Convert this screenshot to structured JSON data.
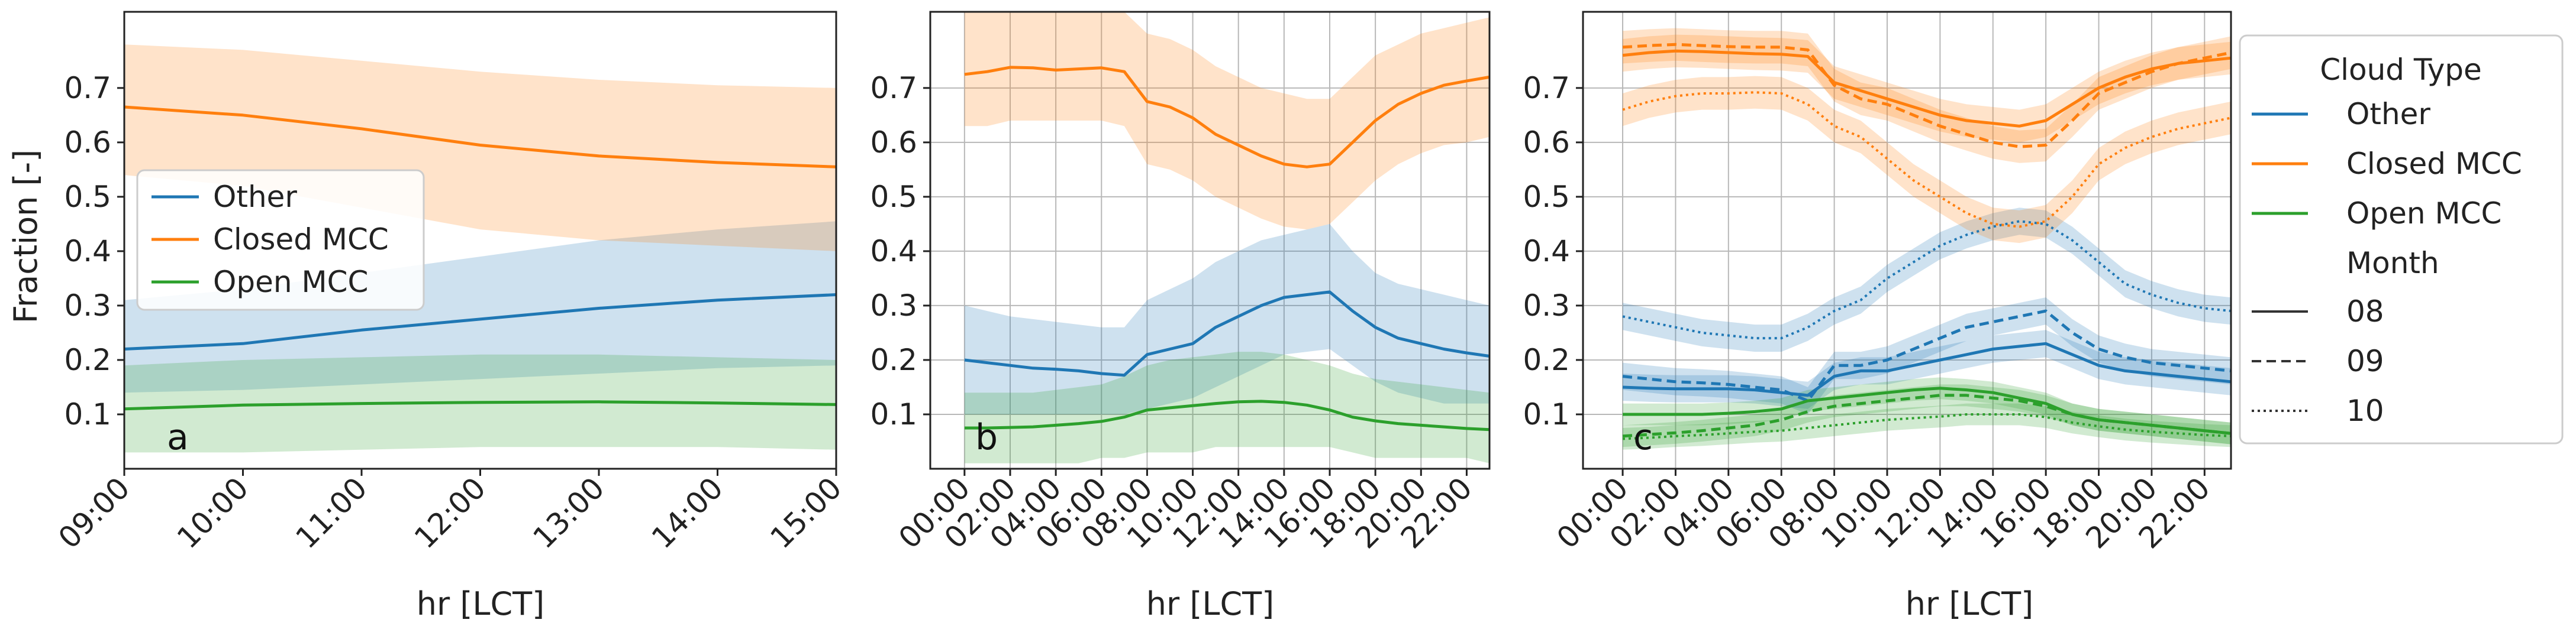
{
  "chart_data": [
    {
      "panel": "a",
      "type": "line",
      "xlabel": "hr [LCT]",
      "ylabel": "Fraction [-]",
      "xlim": [
        9,
        15
      ],
      "ylim": [
        0,
        0.84
      ],
      "grid": false,
      "xticks": [
        9,
        10,
        11,
        12,
        13,
        14,
        15
      ],
      "xticklabels": [
        "09:00",
        "10:00",
        "11:00",
        "12:00",
        "13:00",
        "14:00",
        "15:00"
      ],
      "yticks": [
        0.1,
        0.2,
        0.3,
        0.4,
        0.5,
        0.6,
        0.7
      ],
      "yticklabels": [
        "0.1",
        "0.2",
        "0.3",
        "0.4",
        "0.5",
        "0.6",
        "0.7"
      ],
      "legend_position": "center-left",
      "legend": [
        "Other",
        "Closed MCC",
        "Open MCC"
      ],
      "x": [
        9,
        10,
        11,
        12,
        13,
        14,
        15
      ],
      "series": [
        {
          "name": "Other",
          "color": "#1f77b4",
          "style": "solid",
          "values": [
            0.22,
            0.23,
            0.255,
            0.275,
            0.295,
            0.31,
            0.32
          ],
          "lower": [
            0.14,
            0.145,
            0.155,
            0.165,
            0.175,
            0.185,
            0.19
          ],
          "upper": [
            0.31,
            0.33,
            0.36,
            0.39,
            0.42,
            0.44,
            0.455
          ]
        },
        {
          "name": "Closed MCC",
          "color": "#ff7f0e",
          "style": "solid",
          "values": [
            0.665,
            0.65,
            0.625,
            0.595,
            0.575,
            0.563,
            0.555
          ],
          "lower": [
            0.54,
            0.52,
            0.48,
            0.44,
            0.42,
            0.41,
            0.4
          ],
          "upper": [
            0.78,
            0.77,
            0.75,
            0.73,
            0.715,
            0.705,
            0.7
          ]
        },
        {
          "name": "Open MCC",
          "color": "#2ca02c",
          "style": "solid",
          "values": [
            0.11,
            0.117,
            0.12,
            0.122,
            0.123,
            0.121,
            0.118
          ],
          "lower": [
            0.03,
            0.03,
            0.035,
            0.04,
            0.04,
            0.04,
            0.035
          ],
          "upper": [
            0.19,
            0.2,
            0.205,
            0.21,
            0.21,
            0.205,
            0.2
          ]
        }
      ]
    },
    {
      "panel": "b",
      "type": "line",
      "xlabel": "hr [LCT]",
      "ylabel": "",
      "xlim": [
        -1.5,
        23
      ],
      "ylim": [
        0,
        0.84
      ],
      "grid": true,
      "xticks": [
        0,
        2,
        4,
        6,
        8,
        10,
        12,
        14,
        16,
        18,
        20,
        22
      ],
      "xticklabels": [
        "00:00",
        "02:00",
        "04:00",
        "06:00",
        "08:00",
        "10:00",
        "12:00",
        "14:00",
        "16:00",
        "18:00",
        "20:00",
        "22:00"
      ],
      "yticks": [
        0.1,
        0.2,
        0.3,
        0.4,
        0.5,
        0.6,
        0.7
      ],
      "yticklabels": [
        "0.1",
        "0.2",
        "0.3",
        "0.4",
        "0.5",
        "0.6",
        "0.7"
      ],
      "x": [
        0,
        1,
        2,
        3,
        4,
        5,
        6,
        7,
        8,
        9,
        10,
        11,
        12,
        13,
        14,
        15,
        16,
        17,
        18,
        19,
        20,
        21,
        22,
        23
      ],
      "series": [
        {
          "name": "Other",
          "color": "#1f77b4",
          "style": "solid",
          "values": [
            0.2,
            0.195,
            0.19,
            0.185,
            0.183,
            0.18,
            0.175,
            0.172,
            0.21,
            0.22,
            0.23,
            0.26,
            0.28,
            0.3,
            0.315,
            0.32,
            0.325,
            0.29,
            0.26,
            0.24,
            0.23,
            0.22,
            0.213,
            0.207
          ],
          "lower": [
            0.1,
            0.1,
            0.1,
            0.1,
            0.1,
            0.1,
            0.1,
            0.1,
            0.11,
            0.12,
            0.13,
            0.15,
            0.17,
            0.19,
            0.21,
            0.215,
            0.22,
            0.19,
            0.16,
            0.14,
            0.13,
            0.12,
            0.12,
            0.12
          ],
          "upper": [
            0.3,
            0.29,
            0.28,
            0.275,
            0.27,
            0.265,
            0.26,
            0.26,
            0.31,
            0.33,
            0.35,
            0.38,
            0.4,
            0.42,
            0.43,
            0.44,
            0.45,
            0.4,
            0.36,
            0.34,
            0.33,
            0.32,
            0.31,
            0.3
          ]
        },
        {
          "name": "Closed MCC",
          "color": "#ff7f0e",
          "style": "solid",
          "values": [
            0.725,
            0.73,
            0.738,
            0.737,
            0.733,
            0.735,
            0.737,
            0.73,
            0.675,
            0.665,
            0.645,
            0.615,
            0.595,
            0.575,
            0.56,
            0.555,
            0.56,
            0.6,
            0.64,
            0.67,
            0.69,
            0.705,
            0.713,
            0.72
          ],
          "lower": [
            0.63,
            0.63,
            0.64,
            0.64,
            0.64,
            0.64,
            0.64,
            0.63,
            0.56,
            0.55,
            0.53,
            0.5,
            0.48,
            0.46,
            0.445,
            0.44,
            0.45,
            0.49,
            0.53,
            0.56,
            0.58,
            0.595,
            0.6,
            0.61
          ],
          "upper": [
            0.84,
            0.84,
            0.84,
            0.84,
            0.84,
            0.84,
            0.84,
            0.84,
            0.8,
            0.79,
            0.77,
            0.74,
            0.72,
            0.7,
            0.69,
            0.68,
            0.68,
            0.72,
            0.76,
            0.78,
            0.8,
            0.81,
            0.82,
            0.83
          ]
        },
        {
          "name": "Open MCC",
          "color": "#2ca02c",
          "style": "solid",
          "values": [
            0.075,
            0.075,
            0.076,
            0.077,
            0.08,
            0.083,
            0.087,
            0.095,
            0.108,
            0.112,
            0.116,
            0.12,
            0.123,
            0.124,
            0.122,
            0.117,
            0.108,
            0.095,
            0.088,
            0.083,
            0.08,
            0.077,
            0.074,
            0.072
          ],
          "lower": [
            0.01,
            0.01,
            0.01,
            0.01,
            0.01,
            0.01,
            0.02,
            0.02,
            0.03,
            0.03,
            0.03,
            0.04,
            0.04,
            0.04,
            0.04,
            0.04,
            0.04,
            0.03,
            0.02,
            0.02,
            0.02,
            0.02,
            0.02,
            0.01
          ],
          "upper": [
            0.14,
            0.14,
            0.14,
            0.14,
            0.145,
            0.15,
            0.155,
            0.17,
            0.19,
            0.2,
            0.205,
            0.21,
            0.215,
            0.215,
            0.21,
            0.2,
            0.19,
            0.175,
            0.165,
            0.16,
            0.155,
            0.15,
            0.145,
            0.14
          ]
        }
      ]
    },
    {
      "panel": "c",
      "type": "line",
      "xlabel": "hr [LCT]",
      "ylabel": "",
      "xlim": [
        -1.5,
        23
      ],
      "ylim": [
        0,
        0.84
      ],
      "grid": true,
      "xticks": [
        0,
        2,
        4,
        6,
        8,
        10,
        12,
        14,
        16,
        18,
        20,
        22
      ],
      "xticklabels": [
        "00:00",
        "02:00",
        "04:00",
        "06:00",
        "08:00",
        "10:00",
        "12:00",
        "14:00",
        "16:00",
        "18:00",
        "20:00",
        "22:00"
      ],
      "yticks": [
        0.1,
        0.2,
        0.3,
        0.4,
        0.5,
        0.6,
        0.7
      ],
      "yticklabels": [
        "0.1",
        "0.2",
        "0.3",
        "0.4",
        "0.5",
        "0.6",
        "0.7"
      ],
      "x": [
        0,
        1,
        2,
        3,
        4,
        5,
        6,
        7,
        8,
        9,
        10,
        11,
        12,
        13,
        14,
        15,
        16,
        17,
        18,
        19,
        20,
        21,
        22,
        23
      ],
      "band_halfwidth": {
        "Other": 0.025,
        "Closed MCC": 0.03,
        "Open MCC": 0.02
      },
      "series": [
        {
          "name": "Other",
          "month": "08",
          "color": "#1f77b4",
          "style": "solid",
          "values": [
            0.15,
            0.148,
            0.147,
            0.147,
            0.147,
            0.145,
            0.14,
            0.135,
            0.17,
            0.18,
            0.18,
            0.19,
            0.2,
            0.21,
            0.22,
            0.225,
            0.23,
            0.21,
            0.19,
            0.18,
            0.175,
            0.17,
            0.165,
            0.16
          ]
        },
        {
          "name": "Other",
          "month": "09",
          "color": "#1f77b4",
          "style": "dashed",
          "values": [
            0.17,
            0.165,
            0.16,
            0.158,
            0.155,
            0.15,
            0.145,
            0.125,
            0.19,
            0.19,
            0.2,
            0.22,
            0.24,
            0.26,
            0.27,
            0.28,
            0.29,
            0.25,
            0.22,
            0.205,
            0.195,
            0.19,
            0.185,
            0.18
          ]
        },
        {
          "name": "Other",
          "month": "10",
          "color": "#1f77b4",
          "style": "dotted",
          "values": [
            0.28,
            0.27,
            0.26,
            0.25,
            0.245,
            0.24,
            0.24,
            0.26,
            0.29,
            0.31,
            0.35,
            0.38,
            0.41,
            0.43,
            0.445,
            0.455,
            0.45,
            0.42,
            0.38,
            0.34,
            0.32,
            0.305,
            0.295,
            0.29
          ]
        },
        {
          "name": "Closed MCC",
          "month": "08",
          "color": "#ff7f0e",
          "style": "solid",
          "values": [
            0.76,
            0.765,
            0.768,
            0.767,
            0.765,
            0.763,
            0.762,
            0.758,
            0.71,
            0.695,
            0.68,
            0.665,
            0.65,
            0.64,
            0.635,
            0.63,
            0.64,
            0.67,
            0.7,
            0.72,
            0.735,
            0.745,
            0.75,
            0.755
          ]
        },
        {
          "name": "Closed MCC",
          "month": "09",
          "color": "#ff7f0e",
          "style": "dashed",
          "values": [
            0.775,
            0.778,
            0.78,
            0.778,
            0.776,
            0.775,
            0.775,
            0.77,
            0.705,
            0.68,
            0.67,
            0.65,
            0.63,
            0.615,
            0.6,
            0.592,
            0.595,
            0.64,
            0.69,
            0.71,
            0.73,
            0.745,
            0.755,
            0.765
          ]
        },
        {
          "name": "Closed MCC",
          "month": "10",
          "color": "#ff7f0e",
          "style": "dotted",
          "values": [
            0.66,
            0.675,
            0.685,
            0.69,
            0.69,
            0.692,
            0.69,
            0.67,
            0.63,
            0.61,
            0.57,
            0.53,
            0.5,
            0.47,
            0.45,
            0.445,
            0.455,
            0.5,
            0.56,
            0.59,
            0.61,
            0.625,
            0.635,
            0.645
          ]
        },
        {
          "name": "Open MCC",
          "month": "08",
          "color": "#2ca02c",
          "style": "solid",
          "values": [
            0.1,
            0.1,
            0.1,
            0.1,
            0.102,
            0.105,
            0.11,
            0.125,
            0.13,
            0.135,
            0.14,
            0.145,
            0.148,
            0.145,
            0.14,
            0.13,
            0.12,
            0.1,
            0.09,
            0.085,
            0.08,
            0.075,
            0.07,
            0.065
          ]
        },
        {
          "name": "Open MCC",
          "month": "09",
          "color": "#2ca02c",
          "style": "dashed",
          "values": [
            0.06,
            0.063,
            0.066,
            0.07,
            0.075,
            0.08,
            0.09,
            0.105,
            0.115,
            0.12,
            0.125,
            0.13,
            0.135,
            0.135,
            0.13,
            0.125,
            0.115,
            0.1,
            0.09,
            0.085,
            0.08,
            0.075,
            0.07,
            0.065
          ]
        },
        {
          "name": "Open MCC",
          "month": "10",
          "color": "#2ca02c",
          "style": "dotted",
          "values": [
            0.055,
            0.057,
            0.06,
            0.062,
            0.065,
            0.068,
            0.07,
            0.075,
            0.08,
            0.085,
            0.09,
            0.093,
            0.096,
            0.1,
            0.1,
            0.1,
            0.095,
            0.085,
            0.078,
            0.072,
            0.068,
            0.065,
            0.062,
            0.06
          ]
        }
      ]
    }
  ],
  "panel_letters": [
    "a",
    "b",
    "c"
  ],
  "xlabel": "hr [LCT]",
  "ylabel": "Fraction [-]",
  "legend_a": {
    "items": [
      "Other",
      "Closed MCC",
      "Open MCC"
    ]
  },
  "legend_c": {
    "title": "Cloud Type",
    "items": [
      "Other",
      "Closed MCC",
      "Open MCC"
    ],
    "month_title": "Month",
    "months": [
      "08",
      "09",
      "10"
    ]
  },
  "colors": {
    "Other": "#1f77b4",
    "Closed MCC": "#ff7f0e",
    "Open MCC": "#2ca02c"
  }
}
